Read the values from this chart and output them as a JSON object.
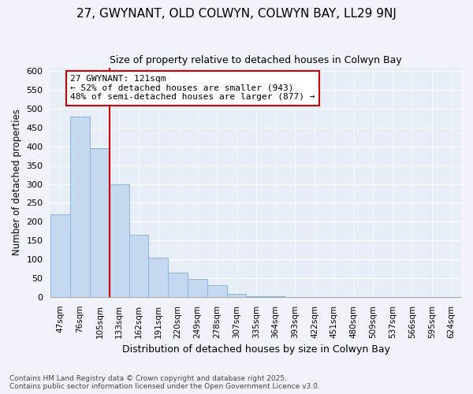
{
  "title1": "27, GWYNANT, OLD COLWYN, COLWYN BAY, LL29 9NJ",
  "title2": "Size of property relative to detached houses in Colwyn Bay",
  "xlabel": "Distribution of detached houses by size in Colwyn Bay",
  "ylabel": "Number of detached properties",
  "categories": [
    "47sqm",
    "76sqm",
    "105sqm",
    "133sqm",
    "162sqm",
    "191sqm",
    "220sqm",
    "249sqm",
    "278sqm",
    "307sqm",
    "335sqm",
    "364sqm",
    "393sqm",
    "422sqm",
    "451sqm",
    "480sqm",
    "509sqm",
    "537sqm",
    "566sqm",
    "595sqm",
    "624sqm"
  ],
  "values": [
    220,
    480,
    395,
    300,
    165,
    105,
    65,
    47,
    30,
    8,
    2,
    1,
    0,
    0,
    0,
    0,
    0,
    0,
    0,
    0,
    0
  ],
  "bar_color": "#c5d8f0",
  "bar_edge_color": "#8ab4d8",
  "annotation_text_line1": "27 GWYNANT: 121sqm",
  "annotation_text_line2": "← 52% of detached houses are smaller (943)",
  "annotation_text_line3": "48% of semi-detached houses are larger (877) →",
  "annotation_box_color": "white",
  "annotation_box_edge_color": "#cc0000",
  "vline_color": "#cc0000",
  "vline_x": 2.5,
  "ylim": [
    0,
    610
  ],
  "yticks": [
    0,
    50,
    100,
    150,
    200,
    250,
    300,
    350,
    400,
    450,
    500,
    550,
    600
  ],
  "footer_line1": "Contains HM Land Registry data © Crown copyright and database right 2025.",
  "footer_line2": "Contains public sector information licensed under the Open Government Licence v3.0.",
  "fig_background_color": "#f0f4fa",
  "plot_background_color": "#e8eef8",
  "grid_color": "#ffffff"
}
